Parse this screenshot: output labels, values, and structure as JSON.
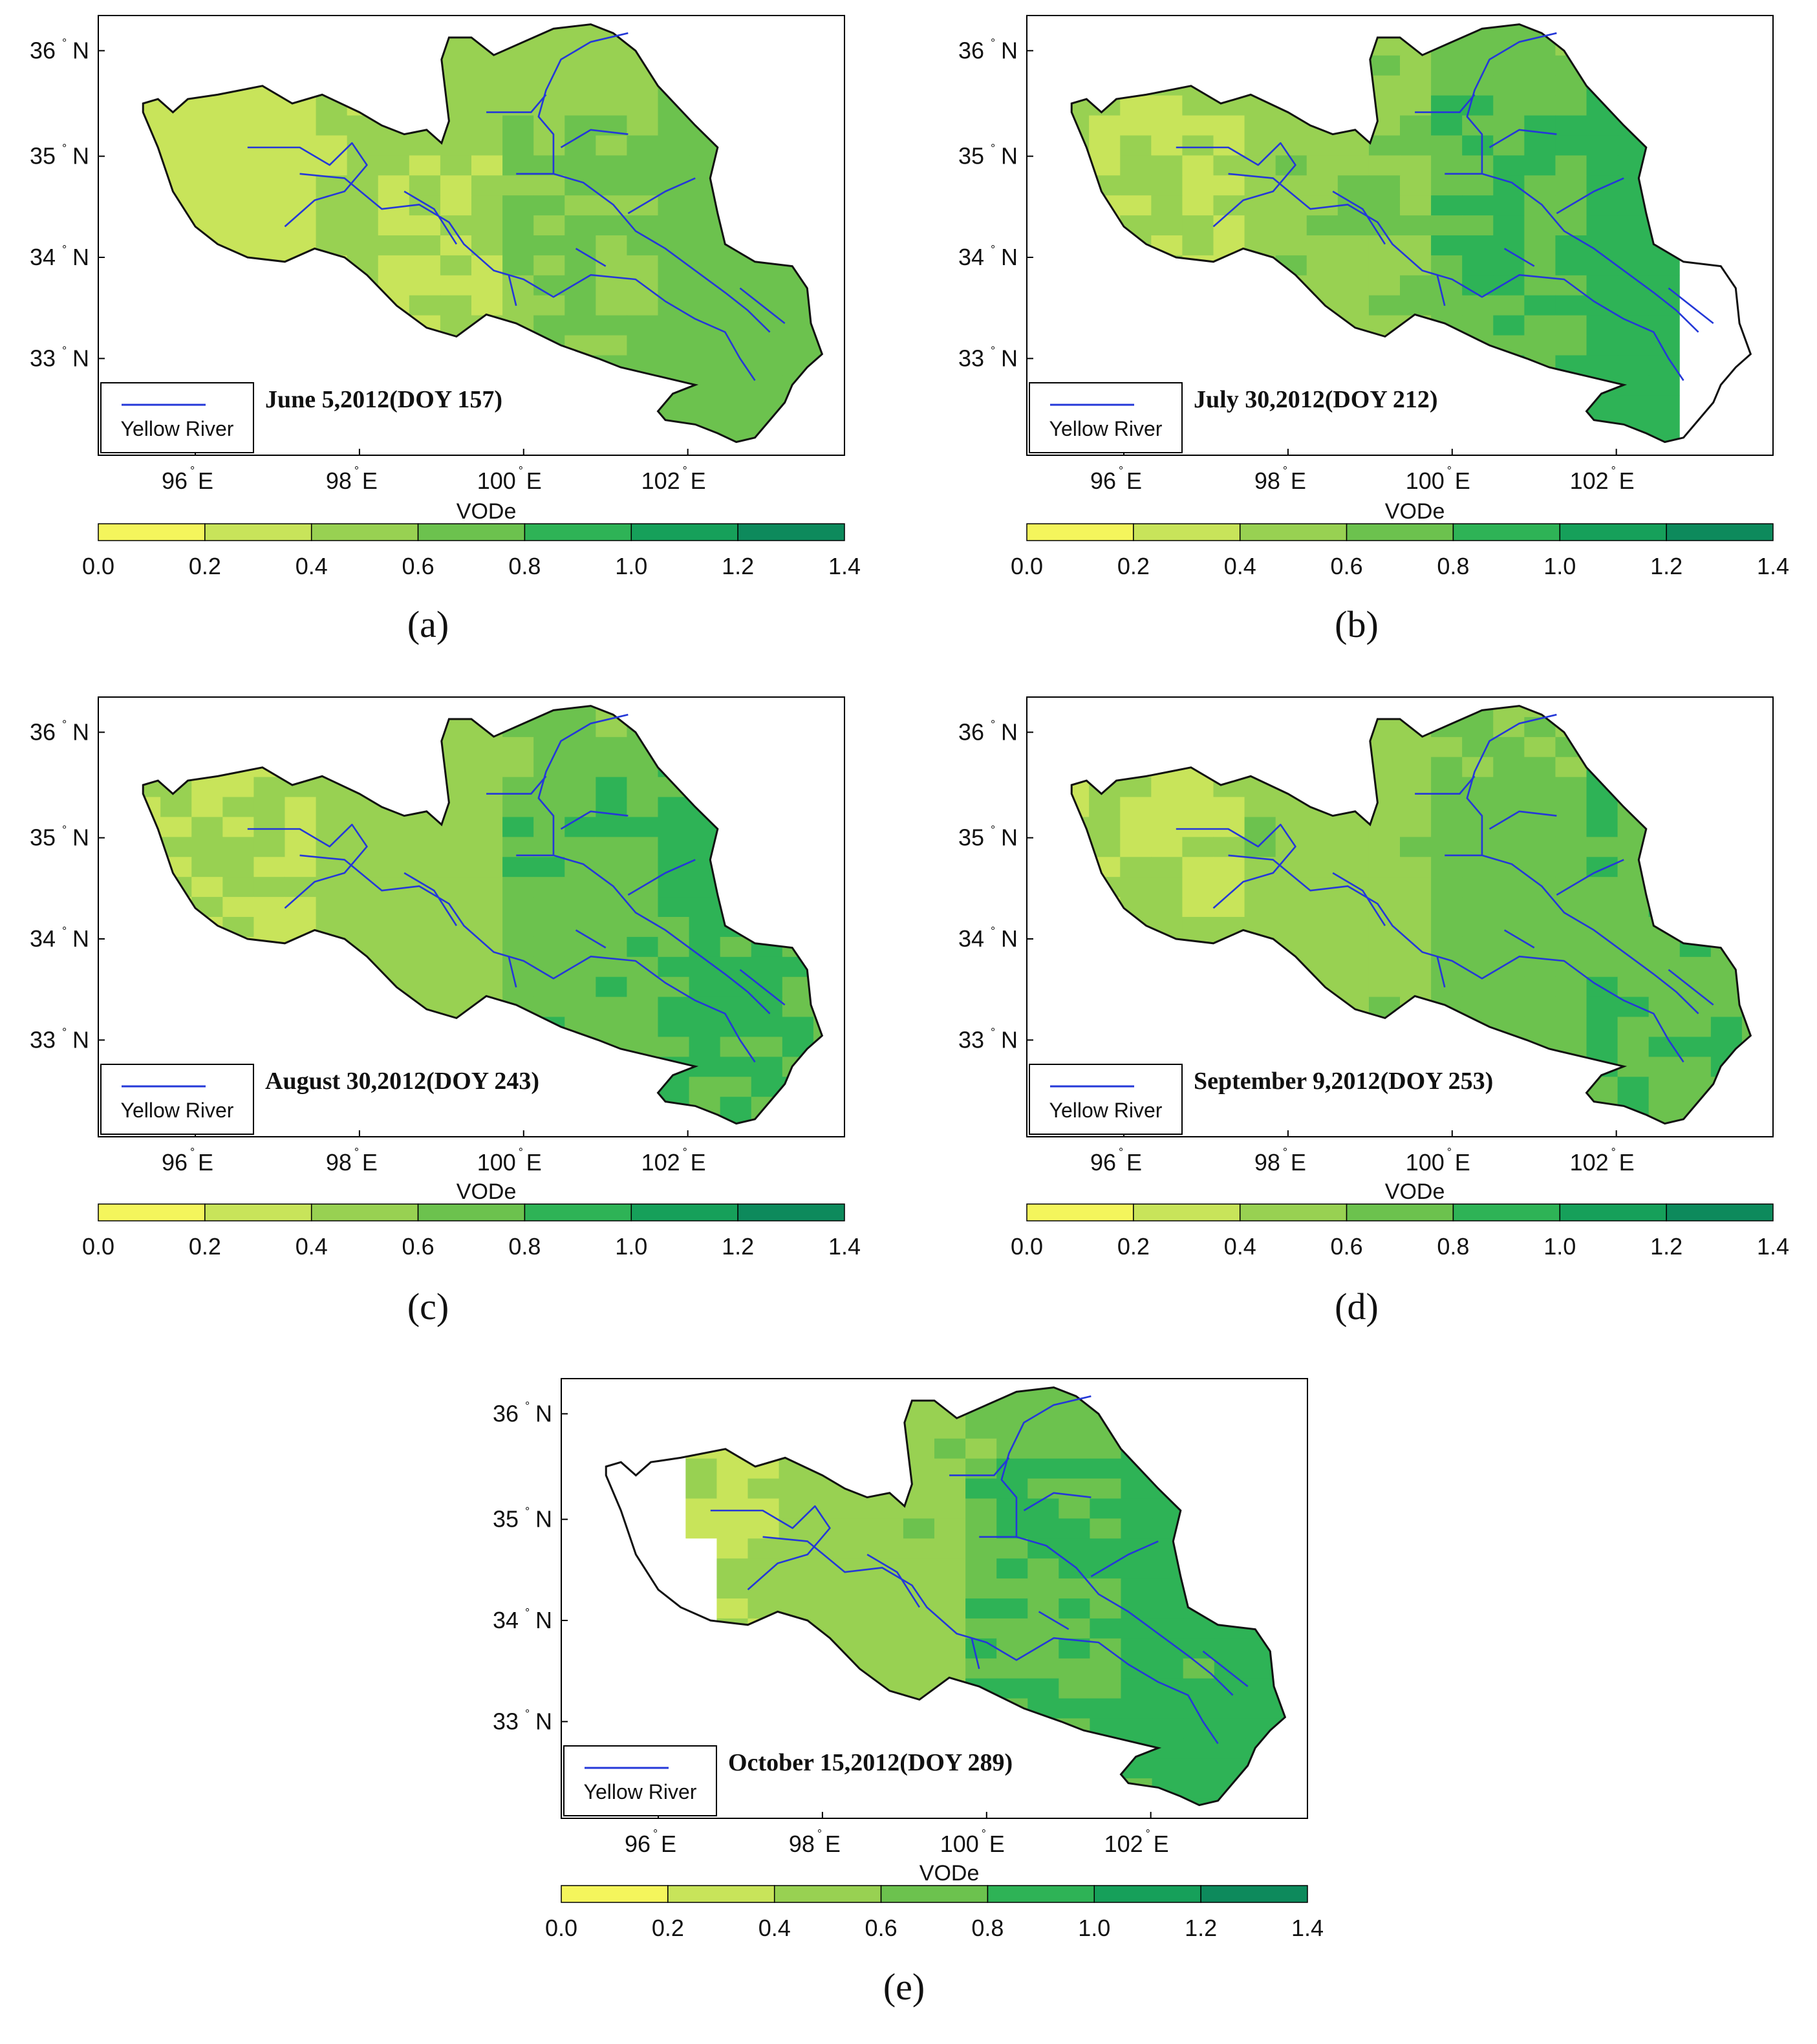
{
  "figure": {
    "panels": [
      {
        "id": "a",
        "label": "(a)",
        "title": "June 5,2012(DOY 157)",
        "boundary_gap": null,
        "mean": [
          [
            0.3,
            0.3,
            0.3,
            0.3,
            0.3,
            0.3,
            0.3,
            0.3,
            0.3,
            0.3
          ],
          [
            0.42,
            0.42,
            0.42,
            0.42,
            0.42,
            0.42,
            0.42,
            0.42,
            0.42,
            0.42
          ],
          [
            0.6,
            0.6,
            0.6,
            0.6,
            0.6,
            0.6,
            0.6,
            0.6,
            0.6,
            0.6
          ],
          [
            0.7,
            0.7,
            0.7,
            0.7,
            0.7,
            0.7,
            0.7,
            0.7,
            0.7,
            0.7
          ]
        ]
      },
      {
        "id": "b",
        "label": "(b)",
        "title": "July 30,2012(DOY 212)",
        "boundary_gap": "east",
        "mean": [
          [
            0.4,
            0.4,
            0.4,
            0.4,
            0.4,
            0.4,
            0.4,
            0.4,
            0.4,
            0.4
          ],
          [
            0.55,
            0.55,
            0.55,
            0.55,
            0.55,
            0.55,
            0.55,
            0.55,
            0.55,
            0.55
          ],
          [
            0.8,
            0.8,
            0.8,
            0.8,
            0.8,
            0.8,
            0.8,
            0.8,
            0.8,
            0.8
          ],
          [
            0.9,
            0.9,
            0.9,
            0.9,
            0.9,
            0.9,
            0.9,
            0.9,
            0.9,
            0.9
          ]
        ]
      },
      {
        "id": "c",
        "label": "(c)",
        "title": "August 30,2012(DOY 243)",
        "boundary_gap": null,
        "mean": [
          [
            0.38,
            0.38,
            0.38,
            0.38,
            0.38,
            0.38,
            0.38,
            0.38,
            0.38,
            0.38
          ],
          [
            0.5,
            0.5,
            0.5,
            0.5,
            0.5,
            0.5,
            0.5,
            0.5,
            0.5,
            0.5
          ],
          [
            0.75,
            0.75,
            0.75,
            0.75,
            0.75,
            0.75,
            0.75,
            0.75,
            0.75,
            0.75
          ],
          [
            0.85,
            0.85,
            0.85,
            0.85,
            0.85,
            0.85,
            0.85,
            0.85,
            0.85,
            0.85
          ]
        ]
      },
      {
        "id": "d",
        "label": "(d)",
        "title": "September 9,2012(DOY 253)",
        "boundary_gap": null,
        "mean": [
          [
            0.4,
            0.4,
            0.4,
            0.4,
            0.4,
            0.4,
            0.4,
            0.4,
            0.4,
            0.4
          ],
          [
            0.52,
            0.52,
            0.52,
            0.52,
            0.52,
            0.52,
            0.52,
            0.52,
            0.52,
            0.52
          ],
          [
            0.7,
            0.7,
            0.7,
            0.7,
            0.7,
            0.7,
            0.7,
            0.7,
            0.7,
            0.7
          ],
          [
            0.78,
            0.78,
            0.78,
            0.78,
            0.78,
            0.78,
            0.78,
            0.78,
            0.78,
            0.78
          ]
        ]
      },
      {
        "id": "e",
        "label": "(e)",
        "title": "October 15,2012(DOY 289)",
        "boundary_gap": "west",
        "mean": [
          [
            0.38,
            0.38,
            0.38,
            0.38,
            0.38,
            0.38,
            0.38,
            0.38,
            0.38,
            0.38
          ],
          [
            0.52,
            0.52,
            0.52,
            0.52,
            0.52,
            0.52,
            0.52,
            0.52,
            0.52,
            0.52
          ],
          [
            0.8,
            0.8,
            0.8,
            0.8,
            0.8,
            0.8,
            0.8,
            0.8,
            0.8,
            0.8
          ],
          [
            0.88,
            0.88,
            0.88,
            0.88,
            0.88,
            0.88,
            0.88,
            0.88,
            0.88,
            0.88
          ]
        ]
      }
    ],
    "lat_ticks": [
      {
        "deg": "36",
        "hemi": "N"
      },
      {
        "deg": "35",
        "hemi": "N"
      },
      {
        "deg": "34",
        "hemi": "N"
      },
      {
        "deg": "33",
        "hemi": "N"
      }
    ],
    "lon_ticks": [
      {
        "deg": "96",
        "hemi": "E"
      },
      {
        "deg": "98",
        "hemi": "E"
      },
      {
        "deg": "100",
        "hemi": "E"
      },
      {
        "deg": "102",
        "hemi": "E"
      }
    ],
    "legend_label": "Yellow River",
    "colorbar": {
      "label": "VODe",
      "ticks": [
        "0.0",
        "0.2",
        "0.4",
        "0.6",
        "0.8",
        "1.0",
        "1.2",
        "1.4"
      ],
      "colors": [
        "#f4f55c",
        "#c8e45a",
        "#98d152",
        "#6cc24e",
        "#2eb356",
        "#16a05a",
        "#0d8a5c"
      ],
      "range": [
        0.0,
        1.4
      ]
    },
    "colors": {
      "river": "#2438d8",
      "boundary": "#111111",
      "frame": "#000000",
      "no_data": "#ffffff"
    }
  }
}
